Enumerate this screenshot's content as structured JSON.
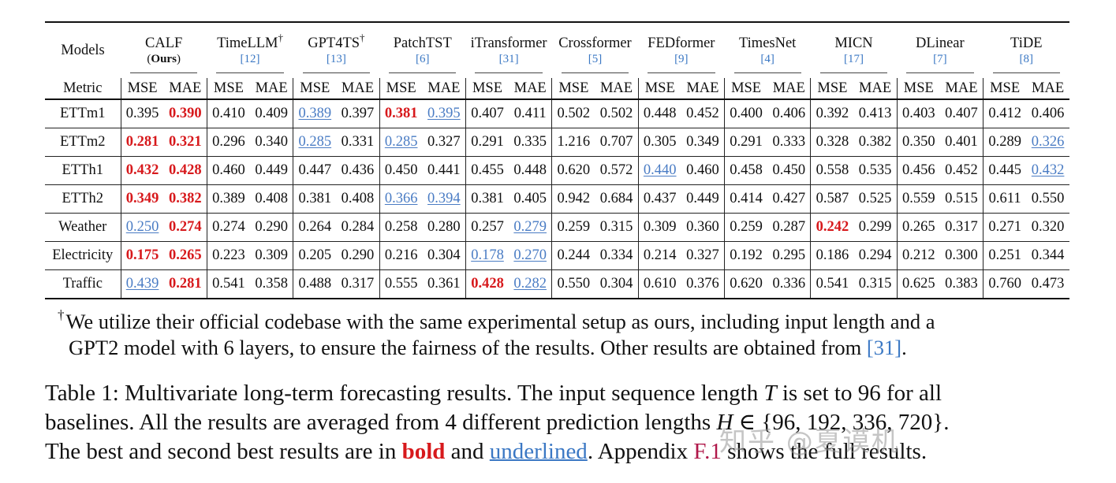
{
  "table": {
    "models_label": "Models",
    "metric_label": "Metric",
    "metrics": [
      "MSE",
      "MAE"
    ],
    "models": [
      {
        "name": "CALF",
        "sub": "(Ours)",
        "dagger": false
      },
      {
        "name": "TimeLLM",
        "ref": "[12]",
        "dagger": true
      },
      {
        "name": "GPT4TS",
        "ref": "[13]",
        "dagger": true
      },
      {
        "name": "PatchTST",
        "ref": "[6]",
        "dagger": false
      },
      {
        "name": "iTransformer",
        "ref": "[31]",
        "dagger": false
      },
      {
        "name": "Crossformer",
        "ref": "[5]",
        "dagger": false
      },
      {
        "name": "FEDformer",
        "ref": "[9]",
        "dagger": false
      },
      {
        "name": "TimesNet",
        "ref": "[4]",
        "dagger": false
      },
      {
        "name": "MICN",
        "ref": "[17]",
        "dagger": false
      },
      {
        "name": "DLinear",
        "ref": "[7]",
        "dagger": false
      },
      {
        "name": "TiDE",
        "ref": "[8]",
        "dagger": false
      }
    ],
    "rows": [
      {
        "dataset": "ETTm1",
        "values": [
          [
            "0.395",
            "n"
          ],
          [
            "0.390",
            "b"
          ],
          [
            "0.410",
            "n"
          ],
          [
            "0.409",
            "n"
          ],
          [
            "0.389",
            "u"
          ],
          [
            "0.397",
            "n"
          ],
          [
            "0.381",
            "b"
          ],
          [
            "0.395",
            "u"
          ],
          [
            "0.407",
            "n"
          ],
          [
            "0.411",
            "n"
          ],
          [
            "0.502",
            "n"
          ],
          [
            "0.502",
            "n"
          ],
          [
            "0.448",
            "n"
          ],
          [
            "0.452",
            "n"
          ],
          [
            "0.400",
            "n"
          ],
          [
            "0.406",
            "n"
          ],
          [
            "0.392",
            "n"
          ],
          [
            "0.413",
            "n"
          ],
          [
            "0.403",
            "n"
          ],
          [
            "0.407",
            "n"
          ],
          [
            "0.412",
            "n"
          ],
          [
            "0.406",
            "n"
          ]
        ]
      },
      {
        "dataset": "ETTm2",
        "values": [
          [
            "0.281",
            "b"
          ],
          [
            "0.321",
            "b"
          ],
          [
            "0.296",
            "n"
          ],
          [
            "0.340",
            "n"
          ],
          [
            "0.285",
            "u"
          ],
          [
            "0.331",
            "n"
          ],
          [
            "0.285",
            "u"
          ],
          [
            "0.327",
            "n"
          ],
          [
            "0.291",
            "n"
          ],
          [
            "0.335",
            "n"
          ],
          [
            "1.216",
            "n"
          ],
          [
            "0.707",
            "n"
          ],
          [
            "0.305",
            "n"
          ],
          [
            "0.349",
            "n"
          ],
          [
            "0.291",
            "n"
          ],
          [
            "0.333",
            "n"
          ],
          [
            "0.328",
            "n"
          ],
          [
            "0.382",
            "n"
          ],
          [
            "0.350",
            "n"
          ],
          [
            "0.401",
            "n"
          ],
          [
            "0.289",
            "n"
          ],
          [
            "0.326",
            "u"
          ]
        ]
      },
      {
        "dataset": "ETTh1",
        "values": [
          [
            "0.432",
            "b"
          ],
          [
            "0.428",
            "b"
          ],
          [
            "0.460",
            "n"
          ],
          [
            "0.449",
            "n"
          ],
          [
            "0.447",
            "n"
          ],
          [
            "0.436",
            "n"
          ],
          [
            "0.450",
            "n"
          ],
          [
            "0.441",
            "n"
          ],
          [
            "0.455",
            "n"
          ],
          [
            "0.448",
            "n"
          ],
          [
            "0.620",
            "n"
          ],
          [
            "0.572",
            "n"
          ],
          [
            "0.440",
            "u"
          ],
          [
            "0.460",
            "n"
          ],
          [
            "0.458",
            "n"
          ],
          [
            "0.450",
            "n"
          ],
          [
            "0.558",
            "n"
          ],
          [
            "0.535",
            "n"
          ],
          [
            "0.456",
            "n"
          ],
          [
            "0.452",
            "n"
          ],
          [
            "0.445",
            "n"
          ],
          [
            "0.432",
            "u"
          ]
        ]
      },
      {
        "dataset": "ETTh2",
        "values": [
          [
            "0.349",
            "b"
          ],
          [
            "0.382",
            "b"
          ],
          [
            "0.389",
            "n"
          ],
          [
            "0.408",
            "n"
          ],
          [
            "0.381",
            "n"
          ],
          [
            "0.408",
            "n"
          ],
          [
            "0.366",
            "u"
          ],
          [
            "0.394",
            "u"
          ],
          [
            "0.381",
            "n"
          ],
          [
            "0.405",
            "n"
          ],
          [
            "0.942",
            "n"
          ],
          [
            "0.684",
            "n"
          ],
          [
            "0.437",
            "n"
          ],
          [
            "0.449",
            "n"
          ],
          [
            "0.414",
            "n"
          ],
          [
            "0.427",
            "n"
          ],
          [
            "0.587",
            "n"
          ],
          [
            "0.525",
            "n"
          ],
          [
            "0.559",
            "n"
          ],
          [
            "0.515",
            "n"
          ],
          [
            "0.611",
            "n"
          ],
          [
            "0.550",
            "n"
          ]
        ]
      },
      {
        "dataset": "Weather",
        "values": [
          [
            "0.250",
            "u"
          ],
          [
            "0.274",
            "b"
          ],
          [
            "0.274",
            "n"
          ],
          [
            "0.290",
            "n"
          ],
          [
            "0.264",
            "n"
          ],
          [
            "0.284",
            "n"
          ],
          [
            "0.258",
            "n"
          ],
          [
            "0.280",
            "n"
          ],
          [
            "0.257",
            "n"
          ],
          [
            "0.279",
            "u"
          ],
          [
            "0.259",
            "n"
          ],
          [
            "0.315",
            "n"
          ],
          [
            "0.309",
            "n"
          ],
          [
            "0.360",
            "n"
          ],
          [
            "0.259",
            "n"
          ],
          [
            "0.287",
            "n"
          ],
          [
            "0.242",
            "b"
          ],
          [
            "0.299",
            "n"
          ],
          [
            "0.265",
            "n"
          ],
          [
            "0.317",
            "n"
          ],
          [
            "0.271",
            "n"
          ],
          [
            "0.320",
            "n"
          ]
        ]
      },
      {
        "dataset": "Electricity",
        "values": [
          [
            "0.175",
            "b"
          ],
          [
            "0.265",
            "b"
          ],
          [
            "0.223",
            "n"
          ],
          [
            "0.309",
            "n"
          ],
          [
            "0.205",
            "n"
          ],
          [
            "0.290",
            "n"
          ],
          [
            "0.216",
            "n"
          ],
          [
            "0.304",
            "n"
          ],
          [
            "0.178",
            "u"
          ],
          [
            "0.270",
            "u"
          ],
          [
            "0.244",
            "n"
          ],
          [
            "0.334",
            "n"
          ],
          [
            "0.214",
            "n"
          ],
          [
            "0.327",
            "n"
          ],
          [
            "0.192",
            "n"
          ],
          [
            "0.295",
            "n"
          ],
          [
            "0.186",
            "n"
          ],
          [
            "0.294",
            "n"
          ],
          [
            "0.212",
            "n"
          ],
          [
            "0.300",
            "n"
          ],
          [
            "0.251",
            "n"
          ],
          [
            "0.344",
            "n"
          ]
        ]
      },
      {
        "dataset": "Traffic",
        "values": [
          [
            "0.439",
            "u"
          ],
          [
            "0.281",
            "b"
          ],
          [
            "0.541",
            "n"
          ],
          [
            "0.358",
            "n"
          ],
          [
            "0.488",
            "n"
          ],
          [
            "0.317",
            "n"
          ],
          [
            "0.555",
            "n"
          ],
          [
            "0.361",
            "n"
          ],
          [
            "0.428",
            "b"
          ],
          [
            "0.282",
            "u"
          ],
          [
            "0.550",
            "n"
          ],
          [
            "0.304",
            "n"
          ],
          [
            "0.610",
            "n"
          ],
          [
            "0.376",
            "n"
          ],
          [
            "0.620",
            "n"
          ],
          [
            "0.336",
            "n"
          ],
          [
            "0.541",
            "n"
          ],
          [
            "0.315",
            "n"
          ],
          [
            "0.625",
            "n"
          ],
          [
            "0.383",
            "n"
          ],
          [
            "0.760",
            "n"
          ],
          [
            "0.473",
            "n"
          ]
        ]
      }
    ]
  },
  "footnote": {
    "dagger": "†",
    "line1": "We utilize their official codebase with the same experimental setup as ours, including input length and a",
    "line2_pre": "GPT2 model with 6 layers, to ensure the fairness of the results. Other results are obtained from ",
    "line2_cite": "[31]",
    "line2_post": "."
  },
  "caption": {
    "line1_pre": "Table 1: Multivariate long-term forecasting results. The input sequence length ",
    "line1_var": "T",
    "line1_post": " is set to 96 for all",
    "line2_pre": "baselines. All the results are averaged from 4 different prediction lengths ",
    "line2_var": "H",
    "line2_post": " ∈ {96, 192, 336, 720}.",
    "line3_a": "The best and second best results are in ",
    "line3_bold": "bold",
    "line3_b": " and ",
    "line3_under": "underlined",
    "line3_c": ". Appendix ",
    "line3_app": "F.1",
    "line3_d": " shows the full results."
  },
  "watermark": "知乎 @夏谟机",
  "colors": {
    "best": "#d7191c",
    "second": "#4a7cc4",
    "cite": "#3b78c4",
    "appendix": "#b0184a"
  }
}
